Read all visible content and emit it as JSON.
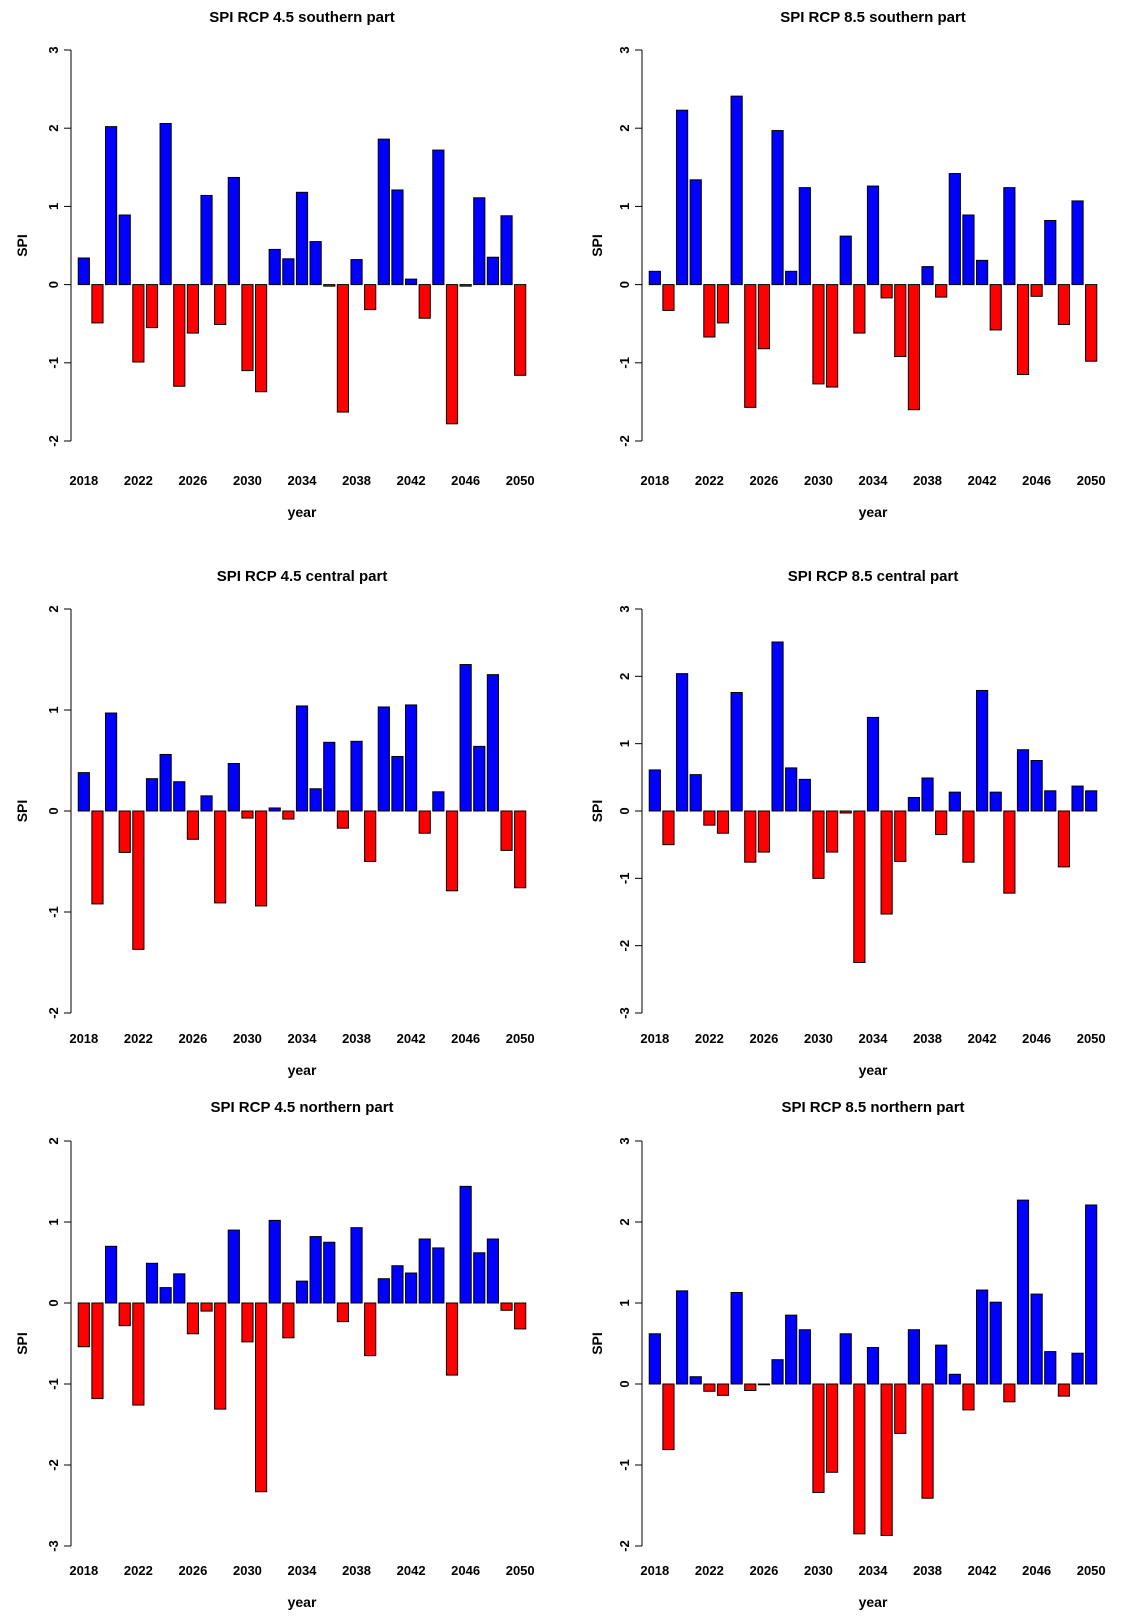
{
  "colors": {
    "positive": "#0000ff",
    "negative": "#ff0000",
    "outline": "#000000"
  },
  "chart_data": [
    {
      "type": "bar",
      "title": "SPI RCP 4.5 southern part",
      "xlabel": "year",
      "ylabel": "SPI",
      "ylim": [
        -2,
        3
      ],
      "yticks": [
        "-2",
        "-1",
        "0",
        "1",
        "2",
        "3"
      ],
      "xtick_labels": [
        "2018",
        "2022",
        "2026",
        "2030",
        "2034",
        "2038",
        "2042",
        "2046",
        "2050"
      ],
      "categories": [
        2018,
        2019,
        2020,
        2021,
        2022,
        2023,
        2024,
        2025,
        2026,
        2027,
        2028,
        2029,
        2030,
        2031,
        2032,
        2033,
        2034,
        2035,
        2036,
        2037,
        2038,
        2039,
        2040,
        2041,
        2042,
        2043,
        2044,
        2045,
        2046,
        2047,
        2048,
        2049,
        2050
      ],
      "values": [
        0.34,
        -0.49,
        2.02,
        0.89,
        -0.99,
        -0.55,
        2.06,
        -1.3,
        -0.62,
        1.14,
        -0.51,
        1.37,
        -1.1,
        -1.37,
        0.45,
        0.33,
        1.18,
        0.55,
        -0.02,
        -1.63,
        0.32,
        -0.32,
        1.86,
        1.21,
        0.07,
        -0.43,
        1.72,
        -1.78,
        -0.02,
        1.11,
        0.35,
        0.88,
        -1.16
      ]
    },
    {
      "type": "bar",
      "title": "SPI RCP 8.5 southern part",
      "xlabel": "year",
      "ylabel": "SPI",
      "ylim": [
        -2,
        3
      ],
      "yticks": [
        "-2",
        "-1",
        "0",
        "1",
        "2",
        "3"
      ],
      "xtick_labels": [
        "2018",
        "2022",
        "2026",
        "2030",
        "2034",
        "2038",
        "2042",
        "2046",
        "2050"
      ],
      "categories": [
        2018,
        2019,
        2020,
        2021,
        2022,
        2023,
        2024,
        2025,
        2026,
        2027,
        2028,
        2029,
        2030,
        2031,
        2032,
        2033,
        2034,
        2035,
        2036,
        2037,
        2038,
        2039,
        2040,
        2041,
        2042,
        2043,
        2044,
        2045,
        2046,
        2047,
        2048,
        2049,
        2050
      ],
      "values": [
        0.17,
        -0.33,
        2.23,
        1.34,
        -0.67,
        -0.49,
        2.41,
        -1.57,
        -0.82,
        1.97,
        0.17,
        1.24,
        -1.27,
        -1.31,
        0.62,
        -0.62,
        1.26,
        -0.17,
        -0.92,
        -1.6,
        0.23,
        -0.16,
        1.42,
        0.89,
        0.31,
        -0.58,
        1.24,
        -1.15,
        -0.15,
        0.82,
        -0.51,
        1.07,
        -0.98
      ]
    },
    {
      "type": "bar",
      "title": "SPI RCP 4.5 central part",
      "xlabel": "year",
      "ylabel": "SPI",
      "ylim": [
        -2,
        2
      ],
      "yticks": [
        "-2",
        "-1",
        "0",
        "1",
        "2"
      ],
      "xtick_labels": [
        "2018",
        "2022",
        "2026",
        "2030",
        "2034",
        "2038",
        "2042",
        "2046",
        "2050"
      ],
      "categories": [
        2018,
        2019,
        2020,
        2021,
        2022,
        2023,
        2024,
        2025,
        2026,
        2027,
        2028,
        2029,
        2030,
        2031,
        2032,
        2033,
        2034,
        2035,
        2036,
        2037,
        2038,
        2039,
        2040,
        2041,
        2042,
        2043,
        2044,
        2045,
        2046,
        2047,
        2048,
        2049,
        2050
      ],
      "values": [
        0.38,
        -0.92,
        0.97,
        -0.41,
        -1.37,
        0.32,
        0.56,
        0.29,
        -0.28,
        0.15,
        -0.91,
        0.47,
        -0.07,
        -0.94,
        0.03,
        -0.08,
        1.04,
        0.22,
        0.68,
        -0.17,
        0.69,
        -0.5,
        1.03,
        0.54,
        1.05,
        -0.22,
        0.19,
        -0.79,
        1.45,
        0.64,
        1.35,
        -0.39,
        -0.76
      ]
    },
    {
      "type": "bar",
      "title": "SPI RCP 8.5 central part",
      "xlabel": "year",
      "ylabel": "SPI",
      "ylim": [
        -3,
        3
      ],
      "yticks": [
        "-3",
        "-2",
        "-1",
        "0",
        "1",
        "2",
        "3"
      ],
      "xtick_labels": [
        "2018",
        "2022",
        "2026",
        "2030",
        "2034",
        "2038",
        "2042",
        "2046",
        "2050"
      ],
      "categories": [
        2018,
        2019,
        2020,
        2021,
        2022,
        2023,
        2024,
        2025,
        2026,
        2027,
        2028,
        2029,
        2030,
        2031,
        2032,
        2033,
        2034,
        2035,
        2036,
        2037,
        2038,
        2039,
        2040,
        2041,
        2042,
        2043,
        2044,
        2045,
        2046,
        2047,
        2048,
        2049,
        2050
      ],
      "values": [
        0.61,
        -0.5,
        2.04,
        0.54,
        -0.21,
        -0.33,
        1.76,
        -0.76,
        -0.61,
        2.51,
        0.64,
        0.47,
        -1.0,
        -0.61,
        -0.03,
        -2.25,
        1.39,
        -1.53,
        -0.75,
        0.2,
        0.49,
        -0.35,
        0.28,
        -0.76,
        1.79,
        0.28,
        -1.22,
        0.91,
        0.75,
        0.3,
        -0.83,
        0.37,
        0.3
      ]
    },
    {
      "type": "bar",
      "title": "SPI RCP 4.5 northern part",
      "xlabel": "year",
      "ylabel": "SPI",
      "ylim": [
        -3,
        2
      ],
      "yticks": [
        "-3",
        "-2",
        "-1",
        "0",
        "1",
        "2"
      ],
      "xtick_labels": [
        "2018",
        "2022",
        "2026",
        "2030",
        "2034",
        "2038",
        "2042",
        "2046",
        "2050"
      ],
      "categories": [
        2018,
        2019,
        2020,
        2021,
        2022,
        2023,
        2024,
        2025,
        2026,
        2027,
        2028,
        2029,
        2030,
        2031,
        2032,
        2033,
        2034,
        2035,
        2036,
        2037,
        2038,
        2039,
        2040,
        2041,
        2042,
        2043,
        2044,
        2045,
        2046,
        2047,
        2048,
        2049,
        2050
      ],
      "values": [
        -0.54,
        -1.18,
        0.7,
        -0.28,
        -1.26,
        0.49,
        0.19,
        0.36,
        -0.38,
        -0.1,
        -1.31,
        0.9,
        -0.48,
        -2.33,
        1.02,
        -0.43,
        0.27,
        0.82,
        0.75,
        -0.23,
        0.93,
        -0.65,
        0.3,
        0.46,
        0.37,
        0.79,
        0.68,
        -0.89,
        1.44,
        0.62,
        0.79,
        -0.09,
        -0.32
      ]
    },
    {
      "type": "bar",
      "title": "SPI RCP 8.5 northern part",
      "xlabel": "year",
      "ylabel": "SPI",
      "ylim": [
        -2,
        3
      ],
      "yticks": [
        "-2",
        "-1",
        "0",
        "1",
        "2",
        "3"
      ],
      "xtick_labels": [
        "2018",
        "2022",
        "2026",
        "2030",
        "2034",
        "2038",
        "2042",
        "2046",
        "2050"
      ],
      "categories": [
        2018,
        2019,
        2020,
        2021,
        2022,
        2023,
        2024,
        2025,
        2026,
        2027,
        2028,
        2029,
        2030,
        2031,
        2032,
        2033,
        2034,
        2035,
        2036,
        2037,
        2038,
        2039,
        2040,
        2041,
        2042,
        2043,
        2044,
        2045,
        2046,
        2047,
        2048,
        2049,
        2050
      ],
      "values": [
        0.62,
        -0.81,
        1.15,
        0.09,
        -0.09,
        -0.14,
        1.13,
        -0.08,
        -0.01,
        0.3,
        0.85,
        0.67,
        -1.34,
        -1.09,
        0.62,
        -1.85,
        0.45,
        -1.87,
        -0.61,
        0.67,
        -1.41,
        0.48,
        0.12,
        -0.32,
        1.16,
        1.01,
        -0.22,
        2.27,
        1.11,
        0.4,
        -0.15,
        0.38,
        2.21
      ]
    }
  ]
}
